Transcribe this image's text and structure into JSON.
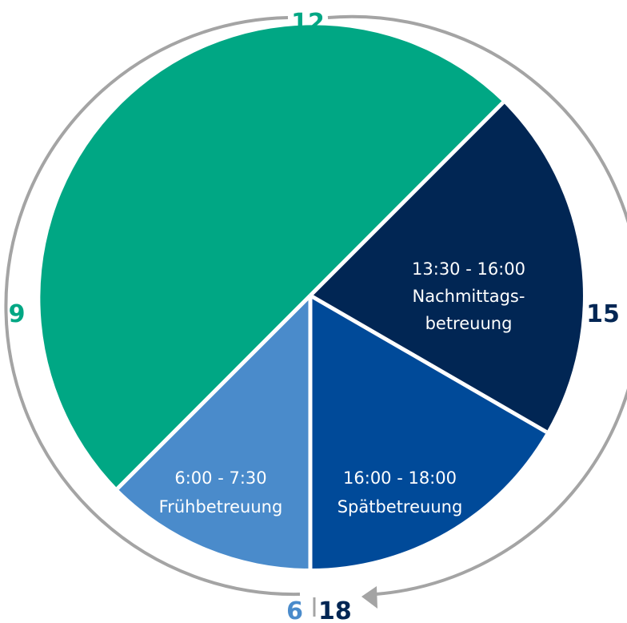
{
  "colors": {
    "ring": "#a4a4a4",
    "green": "#00a784",
    "navy": "#012654",
    "blue": "#004a99",
    "light_blue": "#4a8bcb",
    "divider": "#ffffff"
  },
  "hour_labels": {
    "top": "12",
    "left": "9",
    "right": "15",
    "bottom_left": "6",
    "bottom_right": "18"
  },
  "segments": [
    {
      "id": "core",
      "start_hour": 7.5,
      "end_hour": 13.5,
      "color": "#00a784",
      "label_lines": []
    },
    {
      "id": "nachmittag",
      "start_hour": 13.5,
      "end_hour": 16,
      "color": "#012654",
      "label_lines": [
        "13:30 - 16:00",
        "Nachmittags-",
        "betreuung"
      ]
    },
    {
      "id": "spaet",
      "start_hour": 16,
      "end_hour": 18,
      "color": "#004a99",
      "label_lines": [
        "16:00 - 18:00",
        "Spätbetreuung"
      ]
    },
    {
      "id": "frueh",
      "start_hour": 6,
      "end_hour": 7.5,
      "color": "#4a8bcb",
      "label_lines": [
        "6:00 - 7:30",
        "Frühbetreuung"
      ]
    }
  ]
}
